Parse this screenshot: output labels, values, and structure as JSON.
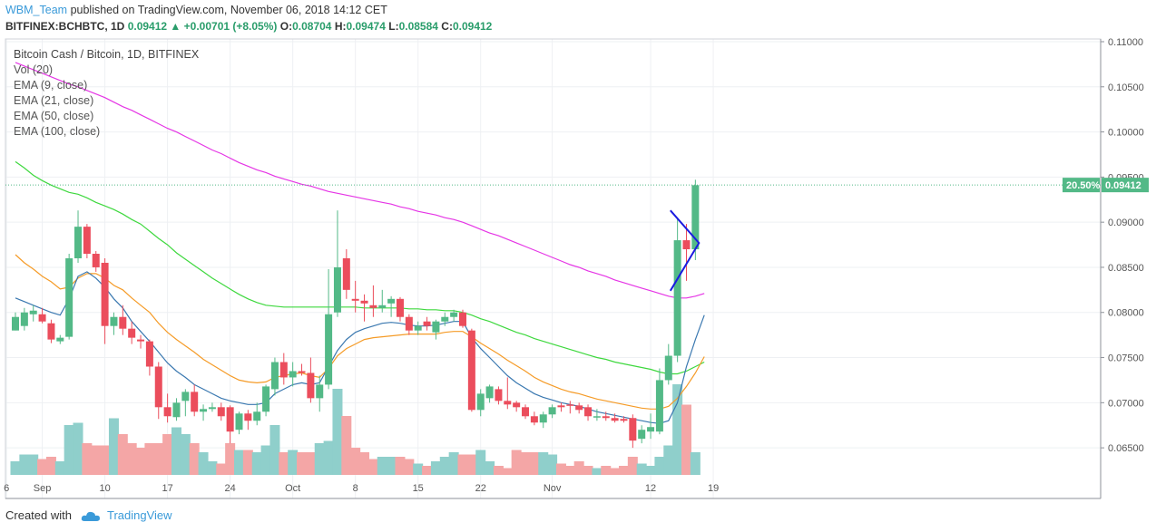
{
  "header": {
    "author": "WBM_Team",
    "published": "published on TradingView.com, November 06, 2018 14:12 CET"
  },
  "quote": {
    "symbol": "BITFINEX:BCHBTC, 1D",
    "last": "0.09412",
    "change": "+0.00701 (+8.05%)",
    "o_label": "O:",
    "open": "0.08704",
    "h_label": "H:",
    "high": "0.09474",
    "l_label": "L:",
    "low": "0.08584",
    "c_label": "C:",
    "close": "0.09412"
  },
  "footer": {
    "created": "Created with",
    "brand": "TradingView"
  },
  "colors": {
    "up": "#53b987",
    "down": "#eb4d5c",
    "up_vol": "#8fcfcb",
    "down_vol": "#f4a6a6",
    "ema9": "#3a78b0",
    "ema21": "#f59b27",
    "ema50": "#3ed83e",
    "ema100": "#e535e5",
    "pattern": "#1a1ae0",
    "price_line": "#53b987"
  },
  "chart_data": {
    "type": "candlestick",
    "title": "Bitcoin Cash / Bitcoin, 1D, BITFINEX",
    "legend": [
      "Vol (20)",
      "EMA (9, close)",
      "EMA (21, close)",
      "EMA (50, close)",
      "EMA (100, close)"
    ],
    "y_axis": {
      "min": 0.062,
      "max": 0.1103,
      "ticks": [
        "0.11000",
        "0.10500",
        "0.10000",
        "0.09500",
        "0.09000",
        "0.08500",
        "0.08000",
        "0.07500",
        "0.07000",
        "0.06500"
      ]
    },
    "x_ticks": [
      {
        "label": "6",
        "day": -1
      },
      {
        "label": "Sep",
        "day": 3
      },
      {
        "label": "10",
        "day": 10
      },
      {
        "label": "17",
        "day": 17
      },
      {
        "label": "24",
        "day": 24
      },
      {
        "label": "Oct",
        "day": 31
      },
      {
        "label": "8",
        "day": 38
      },
      {
        "label": "15",
        "day": 45
      },
      {
        "label": "22",
        "day": 52
      },
      {
        "label": "Nov",
        "day": 60
      },
      {
        "label": "12",
        "day": 71
      },
      {
        "label": "19",
        "day": 78
      }
    ],
    "last_price_label": "0.09412",
    "change_pct_label": "20.50%",
    "candles": [
      {
        "o": 0.078,
        "h": 0.08,
        "l": 0.078,
        "c": 0.0795,
        "v": 6
      },
      {
        "o": 0.0785,
        "h": 0.0805,
        "l": 0.078,
        "c": 0.08,
        "v": 9
      },
      {
        "o": 0.0798,
        "h": 0.0808,
        "l": 0.079,
        "c": 0.0802,
        "v": 9
      },
      {
        "o": 0.0798,
        "h": 0.0805,
        "l": 0.0788,
        "c": 0.079,
        "v": 7
      },
      {
        "o": 0.0788,
        "h": 0.0792,
        "l": 0.0766,
        "c": 0.077,
        "v": 8
      },
      {
        "o": 0.0768,
        "h": 0.0775,
        "l": 0.0765,
        "c": 0.0772,
        "v": 6
      },
      {
        "o": 0.0773,
        "h": 0.0865,
        "l": 0.077,
        "c": 0.086,
        "v": 22
      },
      {
        "o": 0.086,
        "h": 0.0913,
        "l": 0.0855,
        "c": 0.0895,
        "v": 23
      },
      {
        "o": 0.0895,
        "h": 0.0898,
        "l": 0.086,
        "c": 0.0865,
        "v": 14
      },
      {
        "o": 0.0865,
        "h": 0.0868,
        "l": 0.0845,
        "c": 0.085,
        "v": 13
      },
      {
        "o": 0.0855,
        "h": 0.086,
        "l": 0.0765,
        "c": 0.0785,
        "v": 13
      },
      {
        "o": 0.0785,
        "h": 0.08,
        "l": 0.0775,
        "c": 0.0795,
        "v": 25
      },
      {
        "o": 0.0795,
        "h": 0.0808,
        "l": 0.0775,
        "c": 0.0782,
        "v": 18
      },
      {
        "o": 0.0782,
        "h": 0.079,
        "l": 0.0765,
        "c": 0.0772,
        "v": 14
      },
      {
        "o": 0.077,
        "h": 0.0775,
        "l": 0.076,
        "c": 0.0768,
        "v": 12
      },
      {
        "o": 0.0768,
        "h": 0.077,
        "l": 0.073,
        "c": 0.074,
        "v": 14
      },
      {
        "o": 0.074,
        "h": 0.0745,
        "l": 0.0682,
        "c": 0.0695,
        "v": 14
      },
      {
        "o": 0.0695,
        "h": 0.071,
        "l": 0.0678,
        "c": 0.0685,
        "v": 18
      },
      {
        "o": 0.0684,
        "h": 0.0705,
        "l": 0.068,
        "c": 0.07,
        "v": 21
      },
      {
        "o": 0.0702,
        "h": 0.0715,
        "l": 0.0685,
        "c": 0.0712,
        "v": 18
      },
      {
        "o": 0.0712,
        "h": 0.072,
        "l": 0.0685,
        "c": 0.069,
        "v": 14
      },
      {
        "o": 0.069,
        "h": 0.0698,
        "l": 0.068,
        "c": 0.0693,
        "v": 10
      },
      {
        "o": 0.0693,
        "h": 0.07,
        "l": 0.069,
        "c": 0.0695,
        "v": 6
      },
      {
        "o": 0.0695,
        "h": 0.07,
        "l": 0.068,
        "c": 0.0685,
        "v": 5
      },
      {
        "o": 0.0695,
        "h": 0.0697,
        "l": 0.0655,
        "c": 0.0668,
        "v": 14
      },
      {
        "o": 0.067,
        "h": 0.069,
        "l": 0.0665,
        "c": 0.0688,
        "v": 11
      },
      {
        "o": 0.0688,
        "h": 0.0692,
        "l": 0.067,
        "c": 0.068,
        "v": 11
      },
      {
        "o": 0.068,
        "h": 0.07,
        "l": 0.0675,
        "c": 0.069,
        "v": 10
      },
      {
        "o": 0.069,
        "h": 0.072,
        "l": 0.0685,
        "c": 0.0718,
        "v": 13
      },
      {
        "o": 0.0715,
        "h": 0.075,
        "l": 0.0708,
        "c": 0.0745,
        "v": 22
      },
      {
        "o": 0.0745,
        "h": 0.0755,
        "l": 0.072,
        "c": 0.0728,
        "v": 10
      },
      {
        "o": 0.0728,
        "h": 0.0745,
        "l": 0.0718,
        "c": 0.0735,
        "v": 11
      },
      {
        "o": 0.0735,
        "h": 0.0743,
        "l": 0.073,
        "c": 0.0733,
        "v": 10
      },
      {
        "o": 0.0733,
        "h": 0.075,
        "l": 0.07,
        "c": 0.0705,
        "v": 10
      },
      {
        "o": 0.0705,
        "h": 0.073,
        "l": 0.069,
        "c": 0.072,
        "v": 14
      },
      {
        "o": 0.072,
        "h": 0.0848,
        "l": 0.0715,
        "c": 0.0798,
        "v": 15
      },
      {
        "o": 0.08,
        "h": 0.0913,
        "l": 0.0795,
        "c": 0.085,
        "v": 38
      },
      {
        "o": 0.086,
        "h": 0.087,
        "l": 0.0815,
        "c": 0.0825,
        "v": 26
      },
      {
        "o": 0.0815,
        "h": 0.0835,
        "l": 0.08,
        "c": 0.0813,
        "v": 12
      },
      {
        "o": 0.0813,
        "h": 0.082,
        "l": 0.079,
        "c": 0.081,
        "v": 10
      },
      {
        "o": 0.0808,
        "h": 0.083,
        "l": 0.0795,
        "c": 0.0805,
        "v": 7
      },
      {
        "o": 0.0805,
        "h": 0.0825,
        "l": 0.08,
        "c": 0.0808,
        "v": 8
      },
      {
        "o": 0.081,
        "h": 0.0818,
        "l": 0.0795,
        "c": 0.0815,
        "v": 8
      },
      {
        "o": 0.0815,
        "h": 0.0817,
        "l": 0.079,
        "c": 0.0795,
        "v": 8
      },
      {
        "o": 0.0795,
        "h": 0.0798,
        "l": 0.0775,
        "c": 0.078,
        "v": 7
      },
      {
        "o": 0.078,
        "h": 0.079,
        "l": 0.0775,
        "c": 0.0785,
        "v": 5
      },
      {
        "o": 0.079,
        "h": 0.0795,
        "l": 0.078,
        "c": 0.0785,
        "v": 4
      },
      {
        "o": 0.0778,
        "h": 0.0792,
        "l": 0.077,
        "c": 0.079,
        "v": 6
      },
      {
        "o": 0.079,
        "h": 0.08,
        "l": 0.0785,
        "c": 0.0795,
        "v": 8
      },
      {
        "o": 0.0795,
        "h": 0.0803,
        "l": 0.079,
        "c": 0.08,
        "v": 10
      },
      {
        "o": 0.08,
        "h": 0.0803,
        "l": 0.0783,
        "c": 0.0785,
        "v": 9
      },
      {
        "o": 0.078,
        "h": 0.0782,
        "l": 0.069,
        "c": 0.0692,
        "v": 9
      },
      {
        "o": 0.0692,
        "h": 0.0715,
        "l": 0.0685,
        "c": 0.071,
        "v": 11
      },
      {
        "o": 0.0705,
        "h": 0.072,
        "l": 0.07,
        "c": 0.0718,
        "v": 6
      },
      {
        "o": 0.0715,
        "h": 0.0718,
        "l": 0.0698,
        "c": 0.0702,
        "v": 4
      },
      {
        "o": 0.0702,
        "h": 0.0728,
        "l": 0.0693,
        "c": 0.0698,
        "v": 3
      },
      {
        "o": 0.07,
        "h": 0.0702,
        "l": 0.069,
        "c": 0.0695,
        "v": 11
      },
      {
        "o": 0.0695,
        "h": 0.0698,
        "l": 0.0682,
        "c": 0.0685,
        "v": 10
      },
      {
        "o": 0.0685,
        "h": 0.069,
        "l": 0.0675,
        "c": 0.0678,
        "v": 10
      },
      {
        "o": 0.0678,
        "h": 0.069,
        "l": 0.0672,
        "c": 0.0687,
        "v": 10
      },
      {
        "o": 0.0687,
        "h": 0.0698,
        "l": 0.0683,
        "c": 0.0695,
        "v": 9
      },
      {
        "o": 0.0697,
        "h": 0.07,
        "l": 0.069,
        "c": 0.0695,
        "v": 5
      },
      {
        "o": 0.0698,
        "h": 0.0702,
        "l": 0.0688,
        "c": 0.0697,
        "v": 4
      },
      {
        "o": 0.0697,
        "h": 0.07,
        "l": 0.0688,
        "c": 0.0692,
        "v": 6
      },
      {
        "o": 0.0695,
        "h": 0.0698,
        "l": 0.068,
        "c": 0.0685,
        "v": 4
      },
      {
        "o": 0.0685,
        "h": 0.0693,
        "l": 0.068,
        "c": 0.0685,
        "v": 3
      },
      {
        "o": 0.0685,
        "h": 0.069,
        "l": 0.068,
        "c": 0.0683,
        "v": 4
      },
      {
        "o": 0.0683,
        "h": 0.0688,
        "l": 0.0678,
        "c": 0.068,
        "v": 3
      },
      {
        "o": 0.0682,
        "h": 0.0685,
        "l": 0.0678,
        "c": 0.068,
        "v": 4
      },
      {
        "o": 0.0683,
        "h": 0.0687,
        "l": 0.065,
        "c": 0.0658,
        "v": 8
      },
      {
        "o": 0.066,
        "h": 0.0675,
        "l": 0.0655,
        "c": 0.067,
        "v": 5
      },
      {
        "o": 0.0668,
        "h": 0.0688,
        "l": 0.066,
        "c": 0.0673,
        "v": 4
      },
      {
        "o": 0.0668,
        "h": 0.0738,
        "l": 0.0665,
        "c": 0.0725,
        "v": 8
      },
      {
        "o": 0.0725,
        "h": 0.0765,
        "l": 0.072,
        "c": 0.0752,
        "v": 13
      },
      {
        "o": 0.0752,
        "h": 0.0905,
        "l": 0.0745,
        "c": 0.088,
        "v": 40
      },
      {
        "o": 0.088,
        "h": 0.0898,
        "l": 0.0835,
        "c": 0.087,
        "v": 31
      },
      {
        "o": 0.087,
        "h": 0.0947,
        "l": 0.0858,
        "c": 0.0941,
        "v": 10
      }
    ],
    "ema9": [
      0.0816,
      0.0812,
      0.0808,
      0.0804,
      0.08,
      0.0797,
      0.0815,
      0.084,
      0.0845,
      0.0838,
      0.0828,
      0.0815,
      0.0805,
      0.079,
      0.0779,
      0.0768,
      0.0756,
      0.0744,
      0.0735,
      0.0728,
      0.072,
      0.0715,
      0.071,
      0.0705,
      0.0702,
      0.07,
      0.0698,
      0.0698,
      0.07,
      0.071,
      0.0715,
      0.072,
      0.0722,
      0.072,
      0.0722,
      0.074,
      0.0758,
      0.077,
      0.0778,
      0.0782,
      0.0785,
      0.0788,
      0.0789,
      0.0788,
      0.0786,
      0.0785,
      0.0785,
      0.0786,
      0.0788,
      0.079,
      0.079,
      0.0772,
      0.076,
      0.075,
      0.074,
      0.073,
      0.0722,
      0.0716,
      0.071,
      0.0706,
      0.0703,
      0.07,
      0.0698,
      0.0696,
      0.0693,
      0.069,
      0.0688,
      0.0686,
      0.0684,
      0.0682,
      0.068,
      0.0678,
      0.0677,
      0.068,
      0.07,
      0.074,
      0.077,
      0.0797
    ],
    "ema21": [
      0.0864,
      0.0855,
      0.0848,
      0.084,
      0.0834,
      0.0826,
      0.0828,
      0.0838,
      0.0843,
      0.0843,
      0.0838,
      0.083,
      0.0825,
      0.0816,
      0.0808,
      0.08,
      0.0788,
      0.0778,
      0.077,
      0.0763,
      0.0756,
      0.0748,
      0.0742,
      0.0736,
      0.073,
      0.0725,
      0.0723,
      0.0722,
      0.0723,
      0.0728,
      0.073,
      0.0732,
      0.0733,
      0.073,
      0.0728,
      0.0738,
      0.0752,
      0.076,
      0.0765,
      0.077,
      0.0772,
      0.0773,
      0.0774,
      0.0775,
      0.0776,
      0.0776,
      0.0776,
      0.0776,
      0.0778,
      0.0779,
      0.0779,
      0.0773,
      0.0766,
      0.076,
      0.0754,
      0.0747,
      0.0741,
      0.0735,
      0.0728,
      0.0723,
      0.0719,
      0.0715,
      0.0712,
      0.071,
      0.0707,
      0.0704,
      0.0702,
      0.07,
      0.0698,
      0.0696,
      0.0694,
      0.0693,
      0.0693,
      0.0696,
      0.0705,
      0.0718,
      0.0733,
      0.0751
    ],
    "ema50": [
      0.0967,
      0.096,
      0.0952,
      0.0946,
      0.0941,
      0.0937,
      0.0933,
      0.0931,
      0.0927,
      0.0922,
      0.0918,
      0.0914,
      0.0909,
      0.0903,
      0.0898,
      0.089,
      0.0882,
      0.0875,
      0.0866,
      0.0859,
      0.0852,
      0.0845,
      0.0838,
      0.0832,
      0.0826,
      0.082,
      0.0815,
      0.0811,
      0.0808,
      0.0807,
      0.0806,
      0.0806,
      0.0806,
      0.0806,
      0.0806,
      0.0806,
      0.0806,
      0.0806,
      0.0806,
      0.0805,
      0.0805,
      0.0805,
      0.0805,
      0.0805,
      0.0804,
      0.0804,
      0.0803,
      0.0803,
      0.0802,
      0.0802,
      0.08,
      0.0797,
      0.0793,
      0.079,
      0.0786,
      0.0782,
      0.0778,
      0.0775,
      0.0771,
      0.0768,
      0.0765,
      0.0762,
      0.0759,
      0.0756,
      0.0753,
      0.075,
      0.0748,
      0.0745,
      0.0743,
      0.0741,
      0.0739,
      0.0737,
      0.0734,
      0.0732,
      0.0732,
      0.0735,
      0.074,
      0.0745
    ],
    "ema100": [
      0.1077,
      0.1073,
      0.1069,
      0.1065,
      0.1061,
      0.1057,
      0.1053,
      0.105,
      0.1046,
      0.1042,
      0.1038,
      0.1033,
      0.1028,
      0.1024,
      0.1019,
      0.1014,
      0.1009,
      0.1004,
      0.1,
      0.0995,
      0.099,
      0.0985,
      0.098,
      0.0976,
      0.0971,
      0.0966,
      0.0962,
      0.0958,
      0.0955,
      0.0951,
      0.0948,
      0.0945,
      0.0942,
      0.094,
      0.0937,
      0.0934,
      0.0932,
      0.093,
      0.0928,
      0.0926,
      0.0924,
      0.0922,
      0.092,
      0.0917,
      0.0915,
      0.0912,
      0.091,
      0.0908,
      0.0905,
      0.0903,
      0.09,
      0.0896,
      0.0892,
      0.0888,
      0.0885,
      0.0881,
      0.0877,
      0.0873,
      0.0869,
      0.0865,
      0.0861,
      0.0857,
      0.0853,
      0.085,
      0.0846,
      0.0843,
      0.084,
      0.0836,
      0.0833,
      0.083,
      0.0827,
      0.0824,
      0.0821,
      0.0818,
      0.0816,
      0.0816,
      0.0818,
      0.0821
    ],
    "pattern": [
      {
        "day": 73.2,
        "price": 0.0913
      },
      {
        "day": 76.4,
        "price": 0.0877
      },
      {
        "day": 73.2,
        "price": 0.0824
      }
    ]
  }
}
